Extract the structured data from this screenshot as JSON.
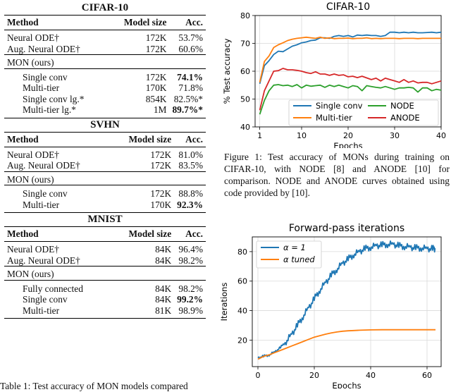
{
  "tables": [
    {
      "title": "CIFAR-10",
      "headers": [
        "Method",
        "Model size",
        "Acc."
      ],
      "groups": [
        {
          "rows": [
            {
              "method": "Neural ODE†",
              "size": "172K",
              "acc": "53.7%"
            },
            {
              "method": "Aug. Neural ODE†",
              "size": "172K",
              "acc": "60.6%"
            }
          ]
        },
        {
          "label": "MON (ours)",
          "rows": [
            {
              "method": "Single conv",
              "size": "172K",
              "acc": "74.1%",
              "bold": true
            },
            {
              "method": "Multi-tier",
              "size": "170K",
              "acc": "71.8%"
            },
            {
              "method": "Single conv lg.*",
              "size": "854K",
              "acc": "82.5%*"
            },
            {
              "method": "Multi-tier lg.*",
              "size": "1M",
              "acc": "89.7%*",
              "bold": true
            }
          ]
        }
      ]
    },
    {
      "title": "SVHN",
      "headers": [
        "Method",
        "Model size",
        "Acc."
      ],
      "groups": [
        {
          "rows": [
            {
              "method": "Neural ODE†",
              "size": "172K",
              "acc": "81.0%"
            },
            {
              "method": "Aug. Neural ODE†",
              "size": "172K",
              "acc": "83.5%"
            }
          ]
        },
        {
          "label": "MON (ours)",
          "rows": [
            {
              "method": "Single conv",
              "size": "172K",
              "acc": "88.8%"
            },
            {
              "method": "Multi-tier",
              "size": "170K",
              "acc": "92.3%",
              "bold": true
            }
          ]
        }
      ]
    },
    {
      "title": "MNIST",
      "headers": [
        "Method",
        "Model size",
        "Acc."
      ],
      "groups": [
        {
          "rows": [
            {
              "method": "Neural ODE†",
              "size": "84K",
              "acc": "96.4%"
            },
            {
              "method": "Aug. Neural ODE†",
              "size": "84K",
              "acc": "98.2%"
            }
          ]
        },
        {
          "label": "MON (ours)",
          "rows": [
            {
              "method": "Fully connected",
              "size": "84K",
              "acc": "98.2%"
            },
            {
              "method": "Single conv",
              "size": "84K",
              "acc": "99.2%",
              "bold": true
            },
            {
              "method": "Multi-tier",
              "size": "81K",
              "acc": "98.9%"
            }
          ]
        }
      ]
    }
  ],
  "table_caption_partial": "Table 1: Test accuracy of MON models compared",
  "figure_caption": "Figure 1: Test accuracy of MONs during training on CIFAR-10, with NODE [8] and ANODE [10] for comparison. NODE and ANODE curves obtained using code provided by [10].",
  "chart_data": [
    {
      "type": "line",
      "title": "CIFAR-10",
      "xlabel": "Epochs",
      "ylabel": "% Test accuracy",
      "xlim": [
        0,
        40
      ],
      "ylim": [
        40,
        80
      ],
      "xticks": [
        1,
        10,
        20,
        30,
        40
      ],
      "yticks": [
        40,
        50,
        60,
        70,
        80
      ],
      "legend_position": "lower-center",
      "x": [
        1,
        2,
        3,
        4,
        5,
        6,
        7,
        8,
        9,
        10,
        11,
        12,
        13,
        14,
        15,
        16,
        17,
        18,
        19,
        20,
        21,
        22,
        23,
        24,
        25,
        26,
        27,
        28,
        29,
        30,
        31,
        32,
        33,
        34,
        35,
        36,
        37,
        38,
        39,
        40
      ],
      "series": [
        {
          "name": "Single conv",
          "color": "#1f77b4",
          "values": [
            55.5,
            62.0,
            63.8,
            66.0,
            67.2,
            67.0,
            68.0,
            69.0,
            69.5,
            70.2,
            70.5,
            71.0,
            71.2,
            72.0,
            72.0,
            71.8,
            72.5,
            72.8,
            72.5,
            72.8,
            72.3,
            73.0,
            72.8,
            73.0,
            72.8,
            72.8,
            72.5,
            72.8,
            74.0,
            74.0,
            73.8,
            74.0,
            73.8,
            74.0,
            73.8,
            73.8,
            73.9,
            74.0,
            73.8,
            74.0
          ]
        },
        {
          "name": "Multi-tier",
          "color": "#ff7f0e",
          "values": [
            56.0,
            63.5,
            65.5,
            68.5,
            69.5,
            70.2,
            71.0,
            71.5,
            71.8,
            72.0,
            72.2,
            72.0,
            71.8,
            72.2,
            71.8,
            72.0,
            71.7,
            71.8,
            71.8,
            71.9,
            71.7,
            71.8,
            71.8,
            72.0,
            71.7,
            71.8,
            71.7,
            71.8,
            71.8,
            71.8,
            71.7,
            71.8,
            71.8,
            71.8,
            71.7,
            71.8,
            71.8,
            71.8,
            71.8,
            71.8
          ]
        },
        {
          "name": "NODE",
          "color": "#2ca02c",
          "values": [
            44.5,
            49.5,
            53.0,
            55.0,
            55.2,
            54.8,
            55.0,
            54.5,
            55.2,
            54.0,
            55.0,
            54.6,
            54.8,
            55.0,
            54.2,
            55.0,
            54.5,
            55.0,
            54.5,
            54.0,
            54.8,
            54.5,
            53.0,
            54.8,
            54.5,
            54.2,
            54.0,
            54.5,
            54.0,
            53.5,
            54.0,
            54.0,
            54.2,
            54.0,
            52.5,
            54.0,
            54.0,
            53.0,
            53.5,
            53.2
          ]
        },
        {
          "name": "ANODE",
          "color": "#d62728",
          "values": [
            46.0,
            53.0,
            56.5,
            60.0,
            60.2,
            61.0,
            60.5,
            60.5,
            60.3,
            60.0,
            59.5,
            59.2,
            59.8,
            59.0,
            59.0,
            58.5,
            59.0,
            58.5,
            58.7,
            58.0,
            58.2,
            57.7,
            58.2,
            57.6,
            57.0,
            57.5,
            56.5,
            57.5,
            57.0,
            56.5,
            56.0,
            57.0,
            56.0,
            56.5,
            55.8,
            56.0,
            56.0,
            55.5,
            56.0,
            56.5
          ]
        }
      ]
    },
    {
      "type": "line",
      "title": "Forward-pass iterations",
      "xlabel": "Epochs",
      "ylabel": "Iterations",
      "xlim": [
        -2,
        65
      ],
      "ylim": [
        2,
        90
      ],
      "xticks": [
        0,
        20,
        40,
        60
      ],
      "yticks": [
        20,
        40,
        60,
        80
      ],
      "legend_position": "top-left",
      "series": [
        {
          "name": "α = 1",
          "color": "#1f77b4",
          "points": [
            [
              0,
              8
            ],
            [
              2,
              9
            ],
            [
              4,
              10
            ],
            [
              6,
              12
            ],
            [
              8,
              15
            ],
            [
              10,
              19
            ],
            [
              12,
              24
            ],
            [
              14,
              30
            ],
            [
              16,
              36
            ],
            [
              18,
              42
            ],
            [
              20,
              48
            ],
            [
              22,
              54
            ],
            [
              24,
              59
            ],
            [
              26,
              64
            ],
            [
              28,
              68
            ],
            [
              30,
              72
            ],
            [
              32,
              75
            ],
            [
              34,
              78
            ],
            [
              36,
              80
            ],
            [
              38,
              82
            ],
            [
              40,
              83
            ],
            [
              42,
              84
            ],
            [
              44,
              84.5
            ],
            [
              46,
              85
            ],
            [
              48,
              85
            ],
            [
              50,
              84
            ],
            [
              52,
              83.5
            ],
            [
              54,
              83
            ],
            [
              56,
              82.5
            ],
            [
              58,
              82.5
            ],
            [
              60,
              82
            ],
            [
              62,
              82
            ],
            [
              63,
              82
            ]
          ]
        },
        {
          "name": "α tuned",
          "color": "#ff7f0e",
          "points": [
            [
              0,
              7
            ],
            [
              2,
              9
            ],
            [
              4,
              10
            ],
            [
              6,
              11.5
            ],
            [
              8,
              13
            ],
            [
              10,
              14.5
            ],
            [
              12,
              16
            ],
            [
              14,
              17.5
            ],
            [
              16,
              19
            ],
            [
              18,
              20.5
            ],
            [
              20,
              22
            ],
            [
              22,
              23
            ],
            [
              24,
              24
            ],
            [
              26,
              24.8
            ],
            [
              28,
              25.5
            ],
            [
              30,
              26
            ],
            [
              32,
              26.3
            ],
            [
              34,
              26.5
            ],
            [
              36,
              26.7
            ],
            [
              38,
              26.8
            ],
            [
              40,
              26.9
            ],
            [
              44,
              27
            ],
            [
              50,
              27
            ],
            [
              56,
              27
            ],
            [
              63,
              27
            ]
          ]
        }
      ]
    }
  ]
}
